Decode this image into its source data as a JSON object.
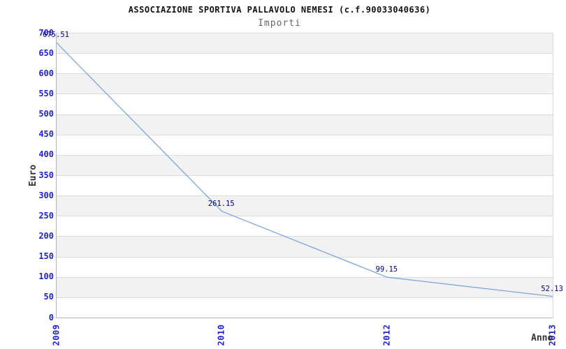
{
  "header": {
    "title": "ASSOCIAZIONE SPORTIVA PALLAVOLO NEMESI (c.f.90033040636)",
    "subtitle": "Importi"
  },
  "chart_data": {
    "type": "line",
    "title": "ASSOCIAZIONE SPORTIVA PALLAVOLO NEMESI (c.f.90033040636)",
    "subtitle": "Importi",
    "xlabel": "Anno",
    "ylabel": "Euro",
    "categories": [
      "2009",
      "2010",
      "2012",
      "2013"
    ],
    "series": [
      {
        "name": "Importi",
        "values": [
          675.51,
          261.15,
          99.15,
          52.13
        ]
      }
    ],
    "point_labels": [
      "675.51",
      "261.15",
      "99.15",
      "52.13"
    ],
    "ylim": [
      0,
      700
    ],
    "ytick_step": 50,
    "yticks": [
      0,
      50,
      100,
      150,
      200,
      250,
      300,
      350,
      400,
      450,
      500,
      550,
      600,
      650,
      700
    ],
    "grid": "horizontal-bands-alternating",
    "legend_position": "none",
    "colors": {
      "line": "#7da7d8",
      "tick_label": "#2222cc",
      "point_label": "#000080",
      "band_gray": "#f2f2f2",
      "band_white": "#ffffff",
      "gridline": "#dcdcdc",
      "axis_text": "#333333",
      "title_text": "#111111",
      "subtitle_text": "#666666"
    }
  }
}
